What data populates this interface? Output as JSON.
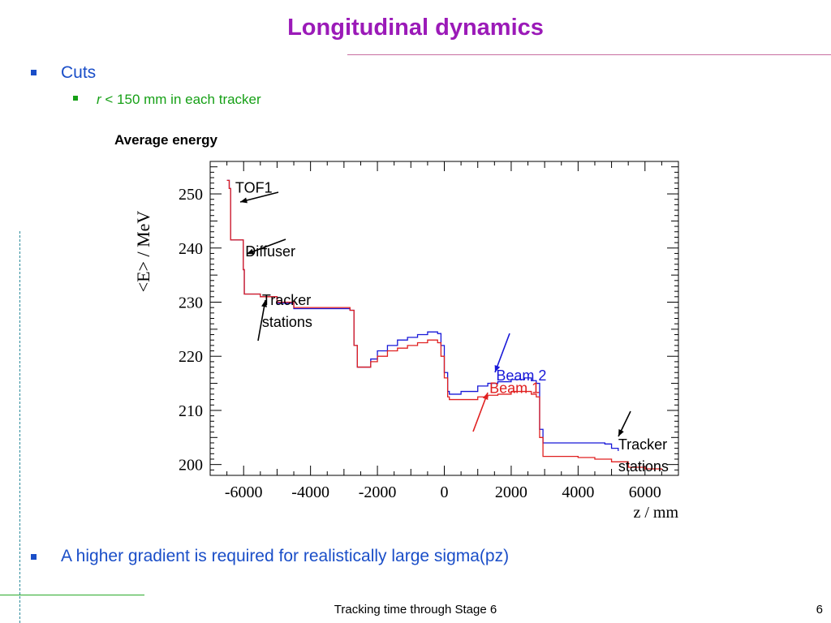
{
  "slide": {
    "title": "Longitudinal dynamics",
    "bullets": {
      "cuts": "Cuts",
      "cut_r_var": "r",
      "cut_r_rest": " < 150 mm in each tracker",
      "gradient": "A higher gradient is required for realistically large sigma(pz)"
    },
    "footer": "Tracking time through Stage 6",
    "page_number": "6"
  },
  "colors": {
    "title": "#9b1ab8",
    "bullet_text": "#1a4ec8",
    "sub_bullet_text": "#16a016",
    "beam1": "#e02020",
    "beam2": "#1818d8"
  },
  "chart_data": {
    "type": "line",
    "title": "Average energy",
    "xlabel": "z / mm",
    "ylabel": "<E> / MeV",
    "xlim": [
      -7000,
      7000
    ],
    "ylim": [
      198,
      256
    ],
    "xticks": [
      -6000,
      -4000,
      -2000,
      0,
      2000,
      4000,
      6000
    ],
    "yticks": [
      200,
      210,
      220,
      230,
      240,
      250
    ],
    "grid": false,
    "series": [
      {
        "name": "Beam 1",
        "x": [
          -6500,
          -6430,
          -6390,
          -6060,
          -6010,
          -5980,
          -5500,
          -5000,
          -4500,
          -4000,
          -3500,
          -3000,
          -2820,
          -2700,
          -2600,
          -2400,
          -2200,
          -2000,
          -1700,
          -1400,
          -1100,
          -800,
          -500,
          -200,
          -100,
          0,
          100,
          150,
          500,
          1000,
          1300,
          1600,
          2000,
          2400,
          2600,
          2750,
          2850,
          2950,
          3500,
          4000,
          4500,
          5000,
          5500,
          6000,
          6500
        ],
        "y": [
          252.5,
          251,
          241.5,
          241.5,
          236,
          231.5,
          231,
          230,
          229,
          229,
          229,
          229,
          228.5,
          222,
          218,
          218,
          219,
          220,
          221,
          221.5,
          222,
          222.5,
          223,
          222.5,
          220,
          216,
          212.5,
          212,
          212,
          212.5,
          212.8,
          213,
          213.5,
          213.5,
          213,
          212.5,
          205,
          201.5,
          201.5,
          201.3,
          201,
          200.5,
          199.5,
          199.2,
          199
        ]
      },
      {
        "name": "Beam 2",
        "x": [
          -6500,
          -6430,
          -6390,
          -6060,
          -6010,
          -5980,
          -5500,
          -5000,
          -4500,
          -4000,
          -3500,
          -3000,
          -2820,
          -2700,
          -2600,
          -2400,
          -2200,
          -2000,
          -1700,
          -1400,
          -1100,
          -800,
          -500,
          -200,
          -100,
          0,
          100,
          150,
          500,
          1000,
          1300,
          1600,
          2000,
          2400,
          2600,
          2750,
          2850,
          2950,
          3500,
          4000,
          4500,
          4800,
          5000,
          5200
        ],
        "y": [
          252.5,
          251,
          241.5,
          241.5,
          236,
          231.5,
          231,
          229.8,
          228.8,
          228.8,
          228.8,
          228.8,
          228.5,
          222,
          218,
          218,
          219.5,
          221,
          222,
          223,
          223.5,
          224,
          224.5,
          224.2,
          222,
          217,
          213.5,
          213,
          213.5,
          214.5,
          215,
          215.3,
          215.7,
          216,
          215.5,
          215,
          206.5,
          204,
          204,
          204,
          204,
          203.8,
          203,
          202.5
        ]
      }
    ],
    "annotations": [
      {
        "text": "TOF1",
        "x": -6250,
        "y": 250.2,
        "color": "#000000"
      },
      {
        "text": "Diffuser",
        "x": -5950,
        "y": 238.5,
        "color": "#000000"
      },
      {
        "text": [
          "Tracker",
          "stations"
        ],
        "x": -5450,
        "y": 229.5,
        "color": "#000000"
      },
      {
        "text": "Beam 2",
        "x": 1550,
        "y": 215.5,
        "color": "#1818d8"
      },
      {
        "text": [
          "Tracker",
          "stations"
        ],
        "x": 5200,
        "y": 202.8,
        "color": "#000000"
      },
      {
        "text": "Beam 1",
        "x": 1350,
        "y": 213.2,
        "color": "#e02020"
      }
    ]
  }
}
